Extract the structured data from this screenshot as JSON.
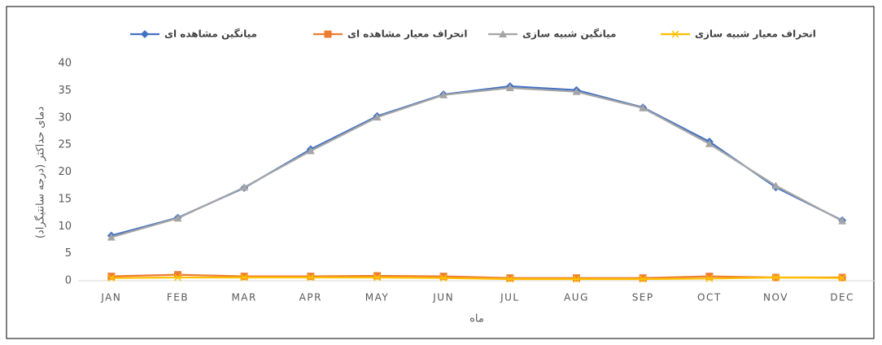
{
  "chart_data": {
    "type": "line",
    "y_label": "دمای حداکثر (درجه سانتیگراد)",
    "x_label": "ماه",
    "categories": [
      "JAN",
      "FEB",
      "MAR",
      "APR",
      "MAY",
      "JUN",
      "JUL",
      "AUG",
      "SEP",
      "OCT",
      "NOV",
      "DEC"
    ],
    "series": [
      {
        "name": "میانگین مشاهده ای",
        "color": "#4472c4",
        "marker": "diamond",
        "values": [
          8.3,
          11.6,
          17.1,
          24.2,
          30.3,
          34.3,
          35.8,
          35.1,
          31.9,
          25.6,
          17.2,
          11.1
        ]
      },
      {
        "name": "انحراف معیار مشاهده ای",
        "color": "#ed7d31",
        "marker": "square",
        "values": [
          0.8,
          1.1,
          0.8,
          0.8,
          0.9,
          0.8,
          0.5,
          0.5,
          0.5,
          0.8,
          0.6,
          0.6
        ]
      },
      {
        "name": "میانگین شبیه سازی",
        "color": "#a5a5a5",
        "marker": "triangle",
        "values": [
          8.0,
          11.5,
          17.2,
          23.9,
          30.1,
          34.2,
          35.5,
          34.8,
          31.8,
          25.2,
          17.5,
          11.0
        ]
      },
      {
        "name": "انحراف معیار شبیه سازی",
        "color": "#ffc000",
        "marker": "x",
        "values": [
          0.5,
          0.6,
          0.6,
          0.6,
          0.6,
          0.5,
          0.3,
          0.3,
          0.3,
          0.4,
          0.6,
          0.5
        ]
      }
    ],
    "ylim": [
      0,
      40
    ],
    "yticks": [
      0,
      5,
      10,
      15,
      20,
      25,
      30,
      35,
      40
    ],
    "grid": false,
    "legend": "top"
  }
}
